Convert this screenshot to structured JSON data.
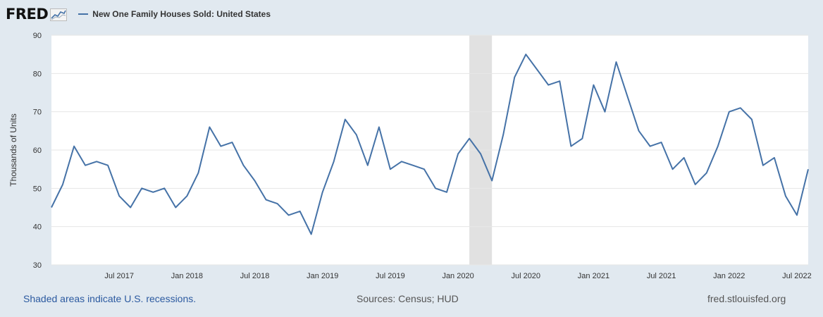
{
  "header": {
    "logo_text": "FRED",
    "logo_icon": "line-chart-icon",
    "series_label": "New One Family Houses Sold: United States",
    "series_color": "#4572a7"
  },
  "footer": {
    "recession_note": "Shaded areas indicate U.S. recessions.",
    "sources": "Sources: Census; HUD",
    "site": "fred.stlouisfed.org"
  },
  "chart_data": {
    "type": "line",
    "title": "New One Family Houses Sold: United States",
    "xlabel": "",
    "ylabel": "Thousands of Units",
    "ylim": [
      30,
      90
    ],
    "yticks": [
      30,
      40,
      50,
      60,
      70,
      80,
      90
    ],
    "grid": true,
    "background": "#ffffff",
    "grid_color": "#e6e6e6",
    "x_start": "2017-01",
    "x_ticks": [
      {
        "index": 6,
        "label": "Jul 2017"
      },
      {
        "index": 12,
        "label": "Jan 2018"
      },
      {
        "index": 18,
        "label": "Jul 2018"
      },
      {
        "index": 24,
        "label": "Jan 2019"
      },
      {
        "index": 30,
        "label": "Jul 2019"
      },
      {
        "index": 36,
        "label": "Jan 2020"
      },
      {
        "index": 42,
        "label": "Jul 2020"
      },
      {
        "index": 48,
        "label": "Jan 2021"
      },
      {
        "index": 54,
        "label": "Jul 2021"
      },
      {
        "index": 60,
        "label": "Jan 2022"
      },
      {
        "index": 66,
        "label": "Jul 2022"
      }
    ],
    "recessions": [
      {
        "start": "Feb 2020",
        "end": "Apr 2020",
        "start_index": 37,
        "end_index": 39,
        "color": "#e1e1e1"
      }
    ],
    "series": [
      {
        "name": "New One Family Houses Sold: United States",
        "color": "#4572a7",
        "values": [
          45,
          51,
          61,
          56,
          57,
          56,
          48,
          45,
          50,
          49,
          50,
          45,
          48,
          54,
          66,
          61,
          62,
          56,
          52,
          47,
          46,
          43,
          44,
          38,
          49,
          57,
          68,
          64,
          56,
          66,
          55,
          57,
          56,
          55,
          50,
          49,
          59,
          63,
          59,
          52,
          64,
          79,
          85,
          81,
          77,
          78,
          61,
          63,
          77,
          70,
          83,
          74,
          65,
          61,
          62,
          55,
          58,
          51,
          54,
          61,
          70,
          71,
          68,
          56,
          58,
          48,
          43,
          55
        ]
      }
    ]
  }
}
